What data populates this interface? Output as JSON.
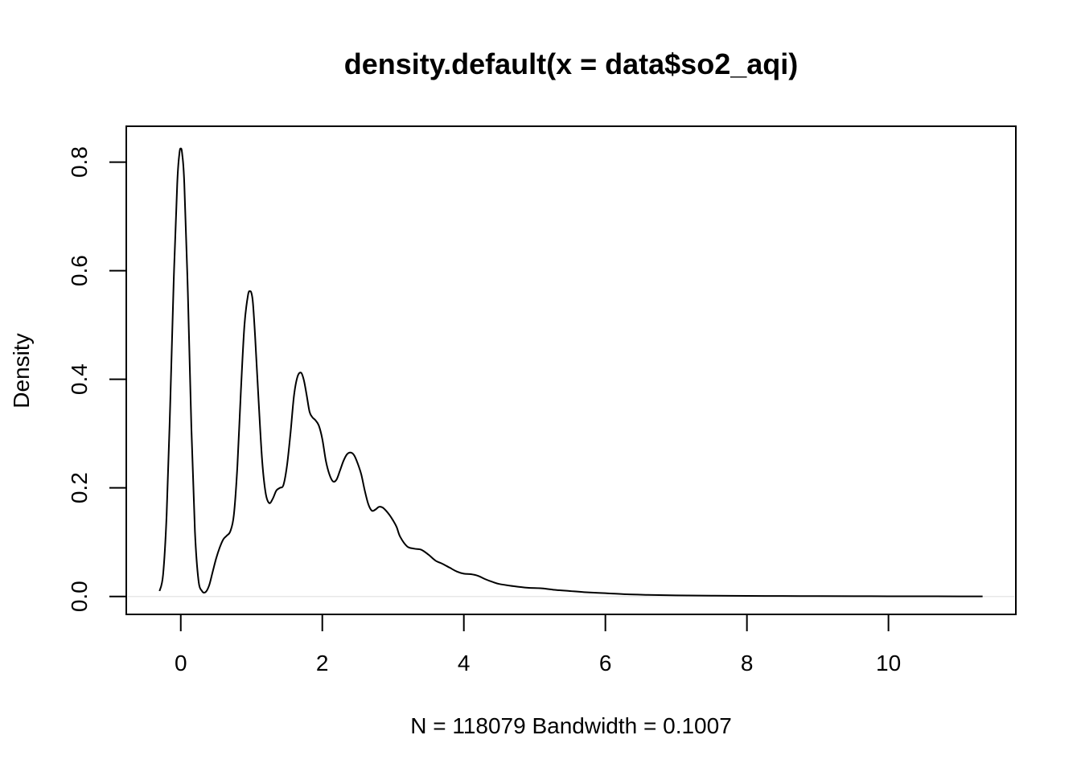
{
  "chart_data": {
    "type": "line",
    "title": "density.default(x = data$so2_aqi)",
    "xlabel": "N = 118079   Bandwidth = 0.1007",
    "ylabel": "Density",
    "xlim": [
      -0.77,
      11.8
    ],
    "ylim": [
      -0.033,
      0.866
    ],
    "x_ticks": [
      0,
      2,
      4,
      6,
      8,
      10
    ],
    "y_ticks": [
      0.0,
      0.2,
      0.4,
      0.6,
      0.8
    ],
    "x_tick_labels": [
      "0",
      "2",
      "4",
      "6",
      "8",
      "10"
    ],
    "y_tick_labels": [
      "0.0",
      "0.2",
      "0.4",
      "0.6",
      "0.8"
    ],
    "grid": false,
    "legend": "none",
    "series": [
      {
        "x": [
          -0.3,
          -0.25,
          -0.2,
          -0.15,
          -0.1,
          -0.05,
          -0.02,
          0.0,
          0.02,
          0.05,
          0.1,
          0.15,
          0.2,
          0.25,
          0.3,
          0.35,
          0.4,
          0.45,
          0.5,
          0.55,
          0.6,
          0.65,
          0.7,
          0.75,
          0.8,
          0.85,
          0.9,
          0.95,
          0.98,
          1.0,
          1.02,
          1.05,
          1.1,
          1.15,
          1.2,
          1.25,
          1.3,
          1.35,
          1.4,
          1.45,
          1.5,
          1.55,
          1.6,
          1.65,
          1.7,
          1.74,
          1.78,
          1.82,
          1.86,
          1.9,
          1.95,
          2.0,
          2.05,
          2.1,
          2.15,
          2.2,
          2.25,
          2.3,
          2.35,
          2.4,
          2.45,
          2.5,
          2.55,
          2.6,
          2.65,
          2.7,
          2.75,
          2.8,
          2.85,
          2.9,
          2.95,
          3.0,
          3.05,
          3.1,
          3.2,
          3.3,
          3.4,
          3.5,
          3.6,
          3.7,
          3.8,
          3.9,
          4.0,
          4.1,
          4.2,
          4.3,
          4.4,
          4.5,
          4.7,
          4.9,
          5.1,
          5.3,
          5.5,
          5.7,
          6.0,
          6.3,
          6.6,
          7.0,
          7.5,
          8.0,
          8.5,
          9.0,
          9.5,
          10.0,
          10.5,
          11.0,
          11.33
        ],
        "y": [
          0.01,
          0.04,
          0.15,
          0.35,
          0.58,
          0.76,
          0.815,
          0.825,
          0.815,
          0.76,
          0.56,
          0.31,
          0.12,
          0.03,
          0.01,
          0.008,
          0.02,
          0.045,
          0.07,
          0.09,
          0.105,
          0.112,
          0.12,
          0.15,
          0.24,
          0.38,
          0.5,
          0.555,
          0.562,
          0.558,
          0.54,
          0.48,
          0.36,
          0.25,
          0.19,
          0.172,
          0.18,
          0.195,
          0.2,
          0.205,
          0.24,
          0.3,
          0.37,
          0.405,
          0.412,
          0.398,
          0.37,
          0.34,
          0.33,
          0.325,
          0.315,
          0.29,
          0.25,
          0.225,
          0.212,
          0.215,
          0.232,
          0.25,
          0.262,
          0.265,
          0.26,
          0.245,
          0.225,
          0.195,
          0.17,
          0.158,
          0.16,
          0.165,
          0.164,
          0.158,
          0.15,
          0.14,
          0.128,
          0.11,
          0.092,
          0.088,
          0.086,
          0.077,
          0.066,
          0.06,
          0.053,
          0.046,
          0.042,
          0.041,
          0.038,
          0.032,
          0.027,
          0.023,
          0.019,
          0.016,
          0.015,
          0.012,
          0.01,
          0.008,
          0.006,
          0.004,
          0.003,
          0.002,
          0.0015,
          0.001,
          0.0008,
          0.0006,
          0.0005,
          0.0004,
          0.0003,
          0.0002,
          0.0001
        ]
      }
    ]
  }
}
